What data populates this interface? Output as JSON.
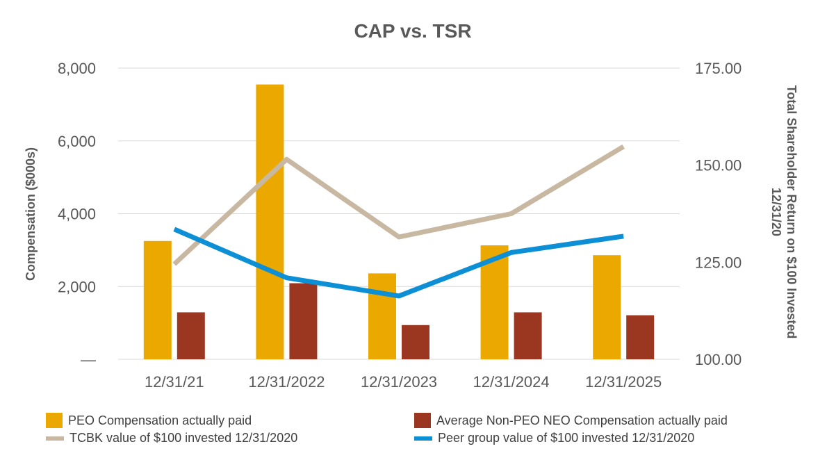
{
  "chart_data": {
    "type": "bar",
    "title": "CAP vs. TSR",
    "categories": [
      "12/31/21",
      "12/31/2022",
      "12/31/2023",
      "12/31/2024",
      "12/31/2025"
    ],
    "y_left": {
      "label": "Compensation ($000s)",
      "lim": [
        0,
        8000
      ],
      "ticks": [
        "—",
        "2,000",
        "4,000",
        "6,000",
        "8,000"
      ]
    },
    "y_right": {
      "label_lines": [
        "Total Shareholder Return on $100 Invested",
        "12/31/20"
      ],
      "lim": [
        100,
        175
      ],
      "ticks": [
        "100.00",
        "125.00",
        "150.00",
        "175.00"
      ]
    },
    "grid": true,
    "legend_position": "bottom",
    "bar_series": [
      {
        "name": "PEO Compensation actually paid",
        "color": "#EBA900",
        "values": [
          3250,
          7550,
          2360,
          3130,
          2860
        ]
      },
      {
        "name": "Average Non-PEO NEO Compensation actually paid",
        "color": "#9B3621",
        "values": [
          1290,
          2090,
          940,
          1290,
          1210
        ]
      }
    ],
    "line_series": [
      {
        "name": "TCBK value of $100 invested 12/31/2020",
        "color": "#C8B8A2",
        "values": [
          124.5,
          151.5,
          131.5,
          137.5,
          154.8
        ]
      },
      {
        "name": "Peer group value of $100 invested 12/31/2020",
        "color": "#0D8FD6",
        "values": [
          133.5,
          121.0,
          116.3,
          127.5,
          131.7
        ]
      }
    ]
  }
}
